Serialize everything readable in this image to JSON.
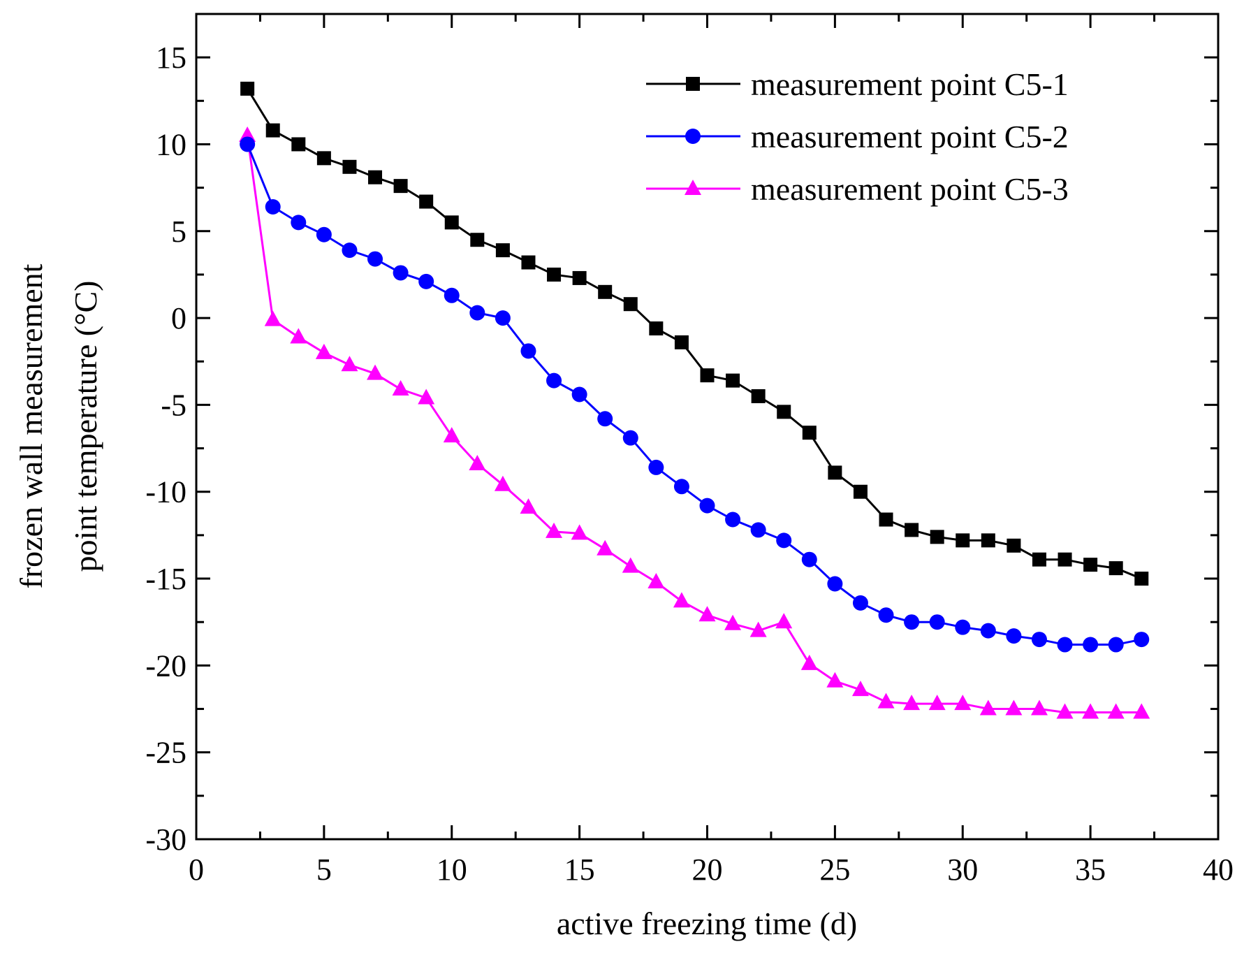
{
  "chart_data": {
    "type": "line",
    "title": "",
    "xlabel": "active freezing time (d)",
    "ylabel_lines": [
      "frozen wall measurement",
      "point temperature  (°C)"
    ],
    "xlim": [
      0,
      40
    ],
    "ylim": [
      -30,
      17.5
    ],
    "xticks": [
      0,
      5,
      10,
      15,
      20,
      25,
      30,
      35,
      40
    ],
    "yticks": [
      15,
      10,
      5,
      0,
      -5,
      -10,
      -15,
      -20,
      -25,
      -30
    ],
    "xtick_labels": [
      "0",
      "5",
      "10",
      "15",
      "20",
      "25",
      "30",
      "35",
      "40"
    ],
    "ytick_labels": [
      "15",
      "10",
      "5",
      "0",
      "-5",
      "-10",
      "-15",
      "-20",
      "-25",
      "-30"
    ],
    "grid": false,
    "legend_position": "top-right",
    "x": [
      2,
      3,
      4,
      5,
      6,
      7,
      8,
      9,
      10,
      11,
      12,
      13,
      14,
      15,
      16,
      17,
      18,
      19,
      20,
      21,
      22,
      23,
      24,
      25,
      26,
      27,
      28,
      29,
      30,
      31,
      32,
      33,
      34,
      35,
      36,
      37
    ],
    "series": [
      {
        "name": "measurement point  C5-1",
        "color": "#000000",
        "marker": "square",
        "values": [
          13.2,
          10.8,
          10.0,
          9.2,
          8.7,
          8.1,
          7.6,
          6.7,
          5.5,
          4.5,
          3.9,
          3.2,
          2.5,
          2.3,
          1.5,
          0.8,
          -0.6,
          -1.4,
          -3.3,
          -3.6,
          -4.5,
          -5.4,
          -6.6,
          -8.9,
          -10.0,
          -11.6,
          -12.2,
          -12.6,
          -12.8,
          -12.8,
          -13.1,
          -13.9,
          -13.9,
          -14.2,
          -14.4,
          -15.0
        ]
      },
      {
        "name": "measurement point  C5-2",
        "color": "#0000ff",
        "marker": "circle",
        "values": [
          10.0,
          6.4,
          5.5,
          4.8,
          3.9,
          3.4,
          2.6,
          2.1,
          1.3,
          0.3,
          0.0,
          -1.9,
          -3.6,
          -4.4,
          -5.8,
          -6.9,
          -8.6,
          -9.7,
          -10.8,
          -11.6,
          -12.2,
          -12.8,
          -13.9,
          -15.3,
          -16.4,
          -17.1,
          -17.5,
          -17.5,
          -17.8,
          -18.0,
          -18.3,
          -18.5,
          -18.8,
          -18.8,
          -18.8,
          -18.5
        ]
      },
      {
        "name": "measurement point  C5-3",
        "color": "#ff00ff",
        "marker": "triangle",
        "values": [
          10.5,
          -0.1,
          -1.1,
          -2.0,
          -2.7,
          -3.2,
          -4.1,
          -4.6,
          -6.8,
          -8.4,
          -9.6,
          -10.9,
          -12.3,
          -12.4,
          -13.3,
          -14.3,
          -15.2,
          -16.3,
          -17.1,
          -17.6,
          -18.0,
          -17.5,
          -19.9,
          -20.9,
          -21.4,
          -22.1,
          -22.2,
          -22.2,
          -22.2,
          -22.5,
          -22.5,
          -22.5,
          -22.7,
          -22.7,
          -22.7,
          -22.7
        ]
      }
    ]
  }
}
